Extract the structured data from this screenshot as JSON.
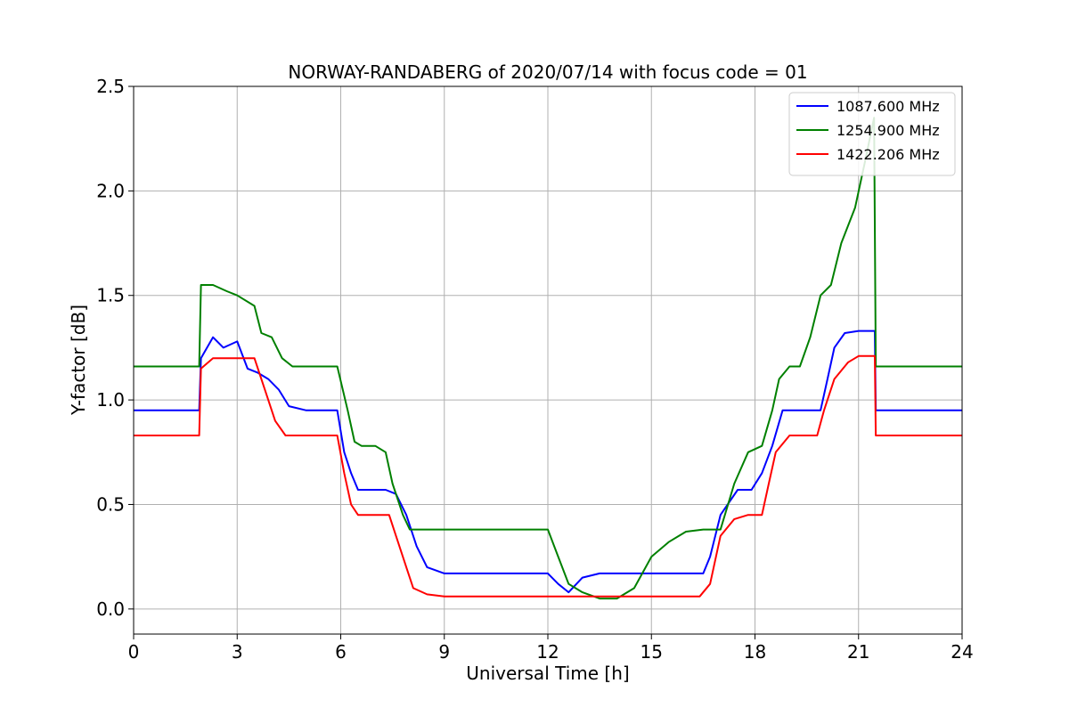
{
  "chart_data": {
    "type": "line",
    "title": "NORWAY-RANDABERG of 2020/07/14 with focus code = 01",
    "xlabel": "Universal Time [h]",
    "ylabel": "Y-factor [dB]",
    "xlim": [
      0,
      24
    ],
    "ylim": [
      -0.12,
      2.5
    ],
    "xticks": [
      0,
      3,
      6,
      9,
      12,
      15,
      18,
      21,
      24
    ],
    "yticks": [
      0.0,
      0.5,
      1.0,
      1.5,
      2.0,
      2.5
    ],
    "xtick_labels": [
      "0",
      "3",
      "6",
      "9",
      "12",
      "15",
      "18",
      "21",
      "24"
    ],
    "ytick_labels": [
      "0.0",
      "0.5",
      "1.0",
      "1.5",
      "2.0",
      "2.5"
    ],
    "grid": true,
    "legend_position": "top-right",
    "series": [
      {
        "name": "1087.600 MHz",
        "color": "#0000ff",
        "x": [
          0,
          1.9,
          1.95,
          2.3,
          2.6,
          3.0,
          3.3,
          3.6,
          3.9,
          4.2,
          4.5,
          5.0,
          5.5,
          5.9,
          6.1,
          6.3,
          6.5,
          7.0,
          7.3,
          7.6,
          7.9,
          8.2,
          8.5,
          9.0,
          10.0,
          11.0,
          12.0,
          12.3,
          12.6,
          13.0,
          13.5,
          14.0,
          14.5,
          15.0,
          16.0,
          16.5,
          16.7,
          17.0,
          17.5,
          17.9,
          18.2,
          18.5,
          18.8,
          19.2,
          19.6,
          19.9,
          20.1,
          20.3,
          20.6,
          21.0,
          21.47,
          21.5,
          22.0,
          23.0,
          24.0
        ],
        "y": [
          0.95,
          0.95,
          1.2,
          1.3,
          1.25,
          1.28,
          1.15,
          1.13,
          1.1,
          1.05,
          0.97,
          0.95,
          0.95,
          0.95,
          0.75,
          0.65,
          0.57,
          0.57,
          0.57,
          0.55,
          0.45,
          0.3,
          0.2,
          0.17,
          0.17,
          0.17,
          0.17,
          0.12,
          0.08,
          0.15,
          0.17,
          0.17,
          0.17,
          0.17,
          0.17,
          0.17,
          0.25,
          0.45,
          0.57,
          0.57,
          0.65,
          0.78,
          0.95,
          0.95,
          0.95,
          0.95,
          1.1,
          1.25,
          1.32,
          1.33,
          1.33,
          0.95,
          0.95,
          0.95,
          0.95
        ]
      },
      {
        "name": "1254.900 MHz",
        "color": "#008000",
        "x": [
          0,
          1.9,
          1.95,
          2.3,
          2.7,
          3.0,
          3.5,
          3.7,
          4.0,
          4.3,
          4.6,
          5.0,
          5.5,
          5.9,
          6.2,
          6.4,
          6.6,
          7.0,
          7.3,
          7.5,
          7.8,
          8.0,
          8.5,
          9.0,
          10.0,
          11.0,
          12.0,
          12.3,
          12.6,
          13.0,
          13.5,
          14.0,
          14.5,
          15.0,
          15.5,
          16.0,
          16.5,
          17.0,
          17.4,
          17.8,
          18.2,
          18.5,
          18.7,
          19.0,
          19.3,
          19.6,
          19.9,
          20.2,
          20.5,
          20.9,
          21.2,
          21.45,
          21.5,
          22.0,
          23.0,
          24.0
        ],
        "y": [
          1.16,
          1.16,
          1.55,
          1.55,
          1.52,
          1.5,
          1.45,
          1.32,
          1.3,
          1.2,
          1.16,
          1.16,
          1.16,
          1.16,
          0.95,
          0.8,
          0.78,
          0.78,
          0.75,
          0.6,
          0.45,
          0.38,
          0.38,
          0.38,
          0.38,
          0.38,
          0.38,
          0.25,
          0.12,
          0.08,
          0.05,
          0.05,
          0.1,
          0.25,
          0.32,
          0.37,
          0.38,
          0.38,
          0.6,
          0.75,
          0.78,
          0.95,
          1.1,
          1.16,
          1.16,
          1.3,
          1.5,
          1.55,
          1.75,
          1.92,
          2.15,
          2.35,
          1.16,
          1.16,
          1.16,
          1.16
        ]
      },
      {
        "name": "1422.206 MHz",
        "color": "#ff0000",
        "x": [
          0,
          1.9,
          1.95,
          2.3,
          2.8,
          3.0,
          3.5,
          3.8,
          4.1,
          4.4,
          5.0,
          5.5,
          5.9,
          6.1,
          6.3,
          6.5,
          7.0,
          7.4,
          7.6,
          7.9,
          8.1,
          8.5,
          9.0,
          10.0,
          11.0,
          12.0,
          12.5,
          13.0,
          14.0,
          15.0,
          16.0,
          16.4,
          16.7,
          17.0,
          17.4,
          17.8,
          18.2,
          18.4,
          18.6,
          19.0,
          19.5,
          19.8,
          20.0,
          20.3,
          20.7,
          21.0,
          21.47,
          21.5,
          22.0,
          23.0,
          24.0
        ],
        "y": [
          0.83,
          0.83,
          1.15,
          1.2,
          1.2,
          1.2,
          1.2,
          1.05,
          0.9,
          0.83,
          0.83,
          0.83,
          0.83,
          0.65,
          0.5,
          0.45,
          0.45,
          0.45,
          0.35,
          0.2,
          0.1,
          0.07,
          0.06,
          0.06,
          0.06,
          0.06,
          0.06,
          0.06,
          0.06,
          0.06,
          0.06,
          0.06,
          0.12,
          0.35,
          0.43,
          0.45,
          0.45,
          0.6,
          0.75,
          0.83,
          0.83,
          0.83,
          0.95,
          1.1,
          1.18,
          1.21,
          1.21,
          0.83,
          0.83,
          0.83,
          0.83
        ]
      }
    ]
  }
}
